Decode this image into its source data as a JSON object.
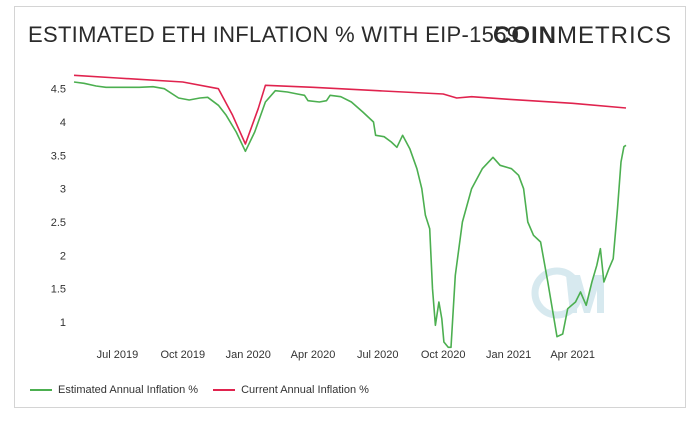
{
  "header": {
    "title": "ESTIMATED ETH INFLATION % WITH EIP-1559",
    "brand_bold": "COIN",
    "brand_light": "METRICS"
  },
  "colors": {
    "estimated": "#4caf50",
    "current": "#e0234e",
    "watermark": "#d7e9ef"
  },
  "chart_data": {
    "type": "line",
    "title": "ESTIMATED ETH INFLATION % WITH EIP-1559",
    "xlabel": "",
    "ylabel": "",
    "ylim": [
      0.7,
      4.75
    ],
    "yticks": [
      1,
      1.5,
      2,
      2.5,
      3,
      3.5,
      4,
      4.5
    ],
    "xticks": [
      "Jul 2019",
      "Oct 2019",
      "Jan 2020",
      "Apr 2020",
      "Jul 2020",
      "Oct 2020",
      "Jan 2021",
      "Apr 2021"
    ],
    "xtick_dates": [
      "2019-07-01",
      "2019-10-01",
      "2020-01-01",
      "2020-04-01",
      "2020-07-01",
      "2020-10-01",
      "2021-01-01",
      "2021-04-01"
    ],
    "xlim": [
      "2019-05-01",
      "2021-06-15"
    ],
    "grid": false,
    "legend_position": "bottom-left",
    "series": [
      {
        "name": "Estimated Annual Inflation %",
        "color": "#4caf50",
        "points": [
          [
            "2019-05-01",
            4.6
          ],
          [
            "2019-05-15",
            4.58
          ],
          [
            "2019-06-01",
            4.54
          ],
          [
            "2019-06-15",
            4.52
          ],
          [
            "2019-07-01",
            4.52
          ],
          [
            "2019-08-01",
            4.52
          ],
          [
            "2019-08-20",
            4.53
          ],
          [
            "2019-09-05",
            4.5
          ],
          [
            "2019-09-25",
            4.36
          ],
          [
            "2019-10-10",
            4.33
          ],
          [
            "2019-10-25",
            4.36
          ],
          [
            "2019-11-05",
            4.37
          ],
          [
            "2019-11-20",
            4.25
          ],
          [
            "2019-12-01",
            4.1
          ],
          [
            "2019-12-15",
            3.85
          ],
          [
            "2019-12-28",
            3.56
          ],
          [
            "2020-01-10",
            3.85
          ],
          [
            "2020-01-25",
            4.3
          ],
          [
            "2020-02-08",
            4.47
          ],
          [
            "2020-02-25",
            4.45
          ],
          [
            "2020-03-10",
            4.42
          ],
          [
            "2020-03-20",
            4.4
          ],
          [
            "2020-03-25",
            4.32
          ],
          [
            "2020-04-10",
            4.3
          ],
          [
            "2020-04-20",
            4.32
          ],
          [
            "2020-04-25",
            4.4
          ],
          [
            "2020-05-10",
            4.38
          ],
          [
            "2020-05-25",
            4.3
          ],
          [
            "2020-06-10",
            4.15
          ],
          [
            "2020-06-25",
            4.0
          ],
          [
            "2020-06-28",
            3.8
          ],
          [
            "2020-07-10",
            3.78
          ],
          [
            "2020-07-20",
            3.7
          ],
          [
            "2020-07-28",
            3.62
          ],
          [
            "2020-08-05",
            3.8
          ],
          [
            "2020-08-15",
            3.6
          ],
          [
            "2020-08-25",
            3.3
          ],
          [
            "2020-09-01",
            3.0
          ],
          [
            "2020-09-06",
            2.6
          ],
          [
            "2020-09-12",
            2.4
          ],
          [
            "2020-09-16",
            1.5
          ],
          [
            "2020-09-20",
            0.95
          ],
          [
            "2020-09-25",
            1.3
          ],
          [
            "2020-09-29",
            1.05
          ],
          [
            "2020-10-02",
            0.7
          ],
          [
            "2020-10-08",
            0.62
          ],
          [
            "2020-10-12",
            0.62
          ],
          [
            "2020-10-18",
            1.7
          ],
          [
            "2020-10-28",
            2.5
          ],
          [
            "2020-11-10",
            3.0
          ],
          [
            "2020-11-25",
            3.3
          ],
          [
            "2020-12-10",
            3.47
          ],
          [
            "2020-12-20",
            3.35
          ],
          [
            "2021-01-05",
            3.3
          ],
          [
            "2021-01-15",
            3.2
          ],
          [
            "2021-01-22",
            3.0
          ],
          [
            "2021-01-28",
            2.5
          ],
          [
            "2021-02-05",
            2.3
          ],
          [
            "2021-02-15",
            2.2
          ],
          [
            "2021-02-25",
            1.6
          ],
          [
            "2021-03-05",
            1.1
          ],
          [
            "2021-03-10",
            0.78
          ],
          [
            "2021-03-18",
            0.82
          ],
          [
            "2021-03-25",
            1.2
          ],
          [
            "2021-04-05",
            1.3
          ],
          [
            "2021-04-12",
            1.45
          ],
          [
            "2021-04-20",
            1.25
          ],
          [
            "2021-04-28",
            1.6
          ],
          [
            "2021-05-05",
            1.85
          ],
          [
            "2021-05-10",
            2.1
          ],
          [
            "2021-05-15",
            1.6
          ],
          [
            "2021-05-22",
            1.8
          ],
          [
            "2021-05-28",
            1.95
          ],
          [
            "2021-06-03",
            2.7
          ],
          [
            "2021-06-08",
            3.4
          ],
          [
            "2021-06-12",
            3.63
          ],
          [
            "2021-06-15",
            3.65
          ]
        ]
      },
      {
        "name": "Current Annual Inflation %",
        "color": "#e0234e",
        "points": [
          [
            "2019-05-01",
            4.7
          ],
          [
            "2019-07-01",
            4.66
          ],
          [
            "2019-10-01",
            4.6
          ],
          [
            "2019-11-20",
            4.5
          ],
          [
            "2019-12-10",
            4.1
          ],
          [
            "2019-12-28",
            3.67
          ],
          [
            "2020-01-15",
            4.2
          ],
          [
            "2020-01-25",
            4.55
          ],
          [
            "2020-04-01",
            4.52
          ],
          [
            "2020-07-01",
            4.47
          ],
          [
            "2020-10-01",
            4.42
          ],
          [
            "2020-10-20",
            4.36
          ],
          [
            "2020-11-10",
            4.38
          ],
          [
            "2021-01-01",
            4.34
          ],
          [
            "2021-04-01",
            4.28
          ],
          [
            "2021-06-15",
            4.21
          ]
        ]
      }
    ]
  }
}
